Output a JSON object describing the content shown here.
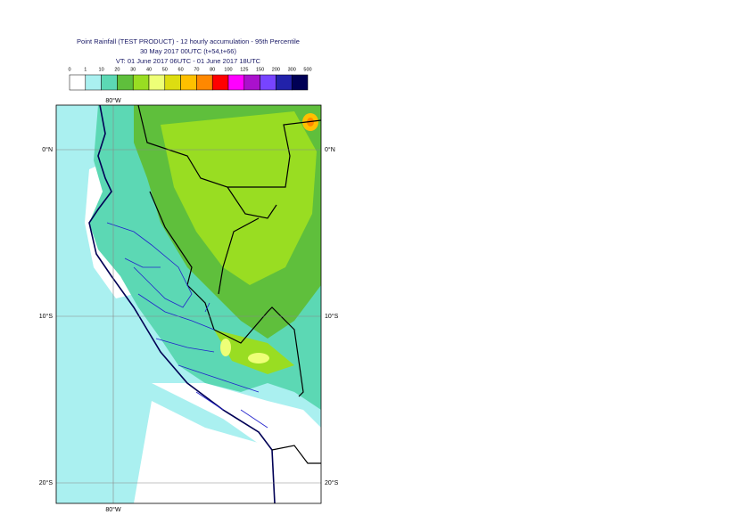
{
  "header": {
    "title": "Point Rainfall (TEST PRODUCT) - 12 hourly accumulation - 95th Percentile",
    "base_time": "30 May 2017 00UTC (t+54,t+66)",
    "valid_time": "VT: 01 June 2017 06UTC - 01 June 2017 18UTC"
  },
  "legend": {
    "labels": [
      "0",
      "1",
      "10",
      "20",
      "30",
      "40",
      "50",
      "60",
      "70",
      "80",
      "100",
      "125",
      "150",
      "200",
      "300",
      "500"
    ],
    "colors": [
      "#ffffff",
      "#aaf0f0",
      "#5cd8b4",
      "#5fbf3c",
      "#99dd22",
      "#eeff77",
      "#dddd11",
      "#ffc000",
      "#ff8800",
      "#ff0000",
      "#ff00ff",
      "#aa11cc",
      "#7744ff",
      "#2222aa",
      "#000055"
    ]
  },
  "map": {
    "lon_label": "80°W",
    "lat_labels": [
      "0°N",
      "10°S",
      "20°S"
    ]
  }
}
